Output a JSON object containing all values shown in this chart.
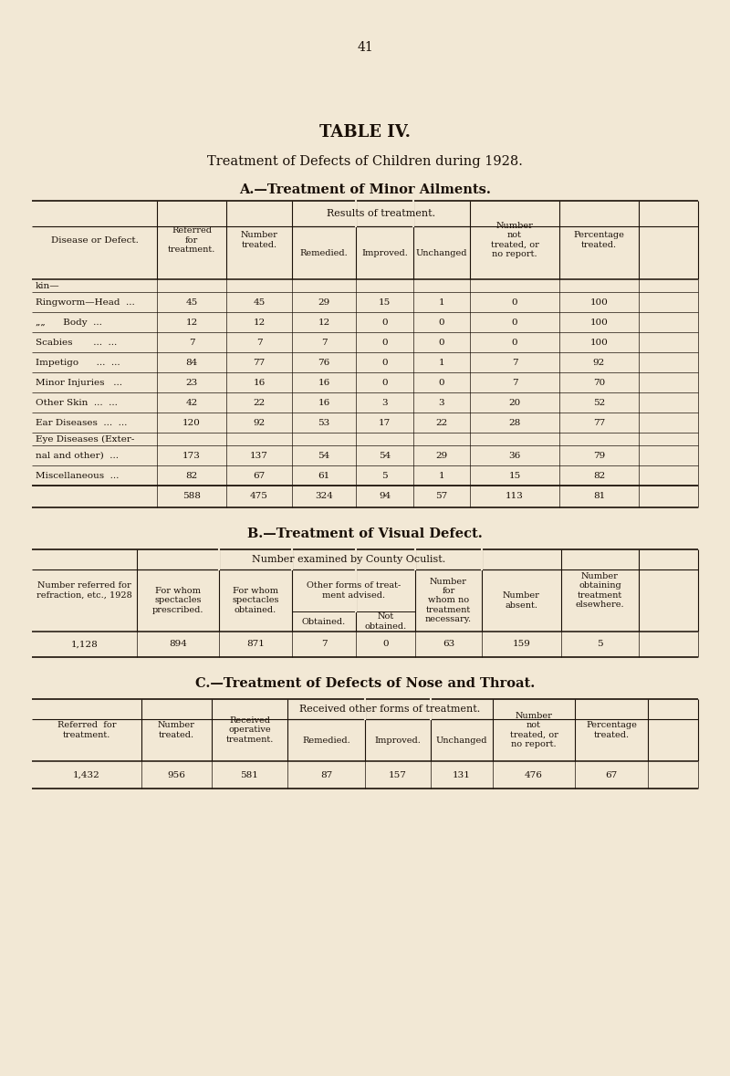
{
  "page_number": "41",
  "title": "TABLE IV.",
  "subtitle": "Treatment of Defects of Children during 1928.",
  "bg_color": "#f2e8d5",
  "text_color": "#1a1008",
  "section_a_title": "A.—Treatment of Minor Ailments.",
  "section_a_rows": [
    [
      "kin—",
      "",
      "",
      "",
      "",
      "",
      "",
      ""
    ],
    [
      "Ringworm—Head  ...",
      "45",
      "45",
      "29",
      "15",
      "1",
      "0",
      "100"
    ],
    [
      "„„      Body  ...",
      "12",
      "12",
      "12",
      "0",
      "0",
      "0",
      "100"
    ],
    [
      "Scabies       ...  ...",
      "7",
      "7",
      "7",
      "0",
      "0",
      "0",
      "100"
    ],
    [
      "Impetigo      ...  ...",
      "84",
      "77",
      "76",
      "0",
      "1",
      "7",
      "92"
    ],
    [
      "Minor Injuries   ...",
      "23",
      "16",
      "16",
      "0",
      "0",
      "7",
      "70"
    ],
    [
      "Other Skin  ...  ...",
      "42",
      "22",
      "16",
      "3",
      "3",
      "20",
      "52"
    ],
    [
      "Ear Diseases  ...  ...",
      "120",
      "92",
      "53",
      "17",
      "22",
      "28",
      "77"
    ],
    [
      "Eye Diseases (Exter-",
      "",
      "",
      "",
      "",
      "",
      "",
      ""
    ],
    [
      "nal and other)  ...",
      "173",
      "137",
      "54",
      "54",
      "29",
      "36",
      "79"
    ],
    [
      "Miscellaneous  ...",
      "82",
      "67",
      "61",
      "5",
      "1",
      "15",
      "82"
    ]
  ],
  "section_a_totals": [
    "",
    "588",
    "475",
    "324",
    "94",
    "57",
    "113",
    "81"
  ],
  "section_b_title": "B.—Treatment of Visual Defect.",
  "section_b_data": [
    "1,128",
    "894",
    "871",
    "7",
    "0",
    "63",
    "159",
    "5"
  ],
  "section_c_title": "C.—Treatment of Defects of Nose and Throat.",
  "section_c_data": [
    "1,432",
    "956",
    "581",
    "87",
    "157",
    "131",
    "476",
    "67"
  ]
}
